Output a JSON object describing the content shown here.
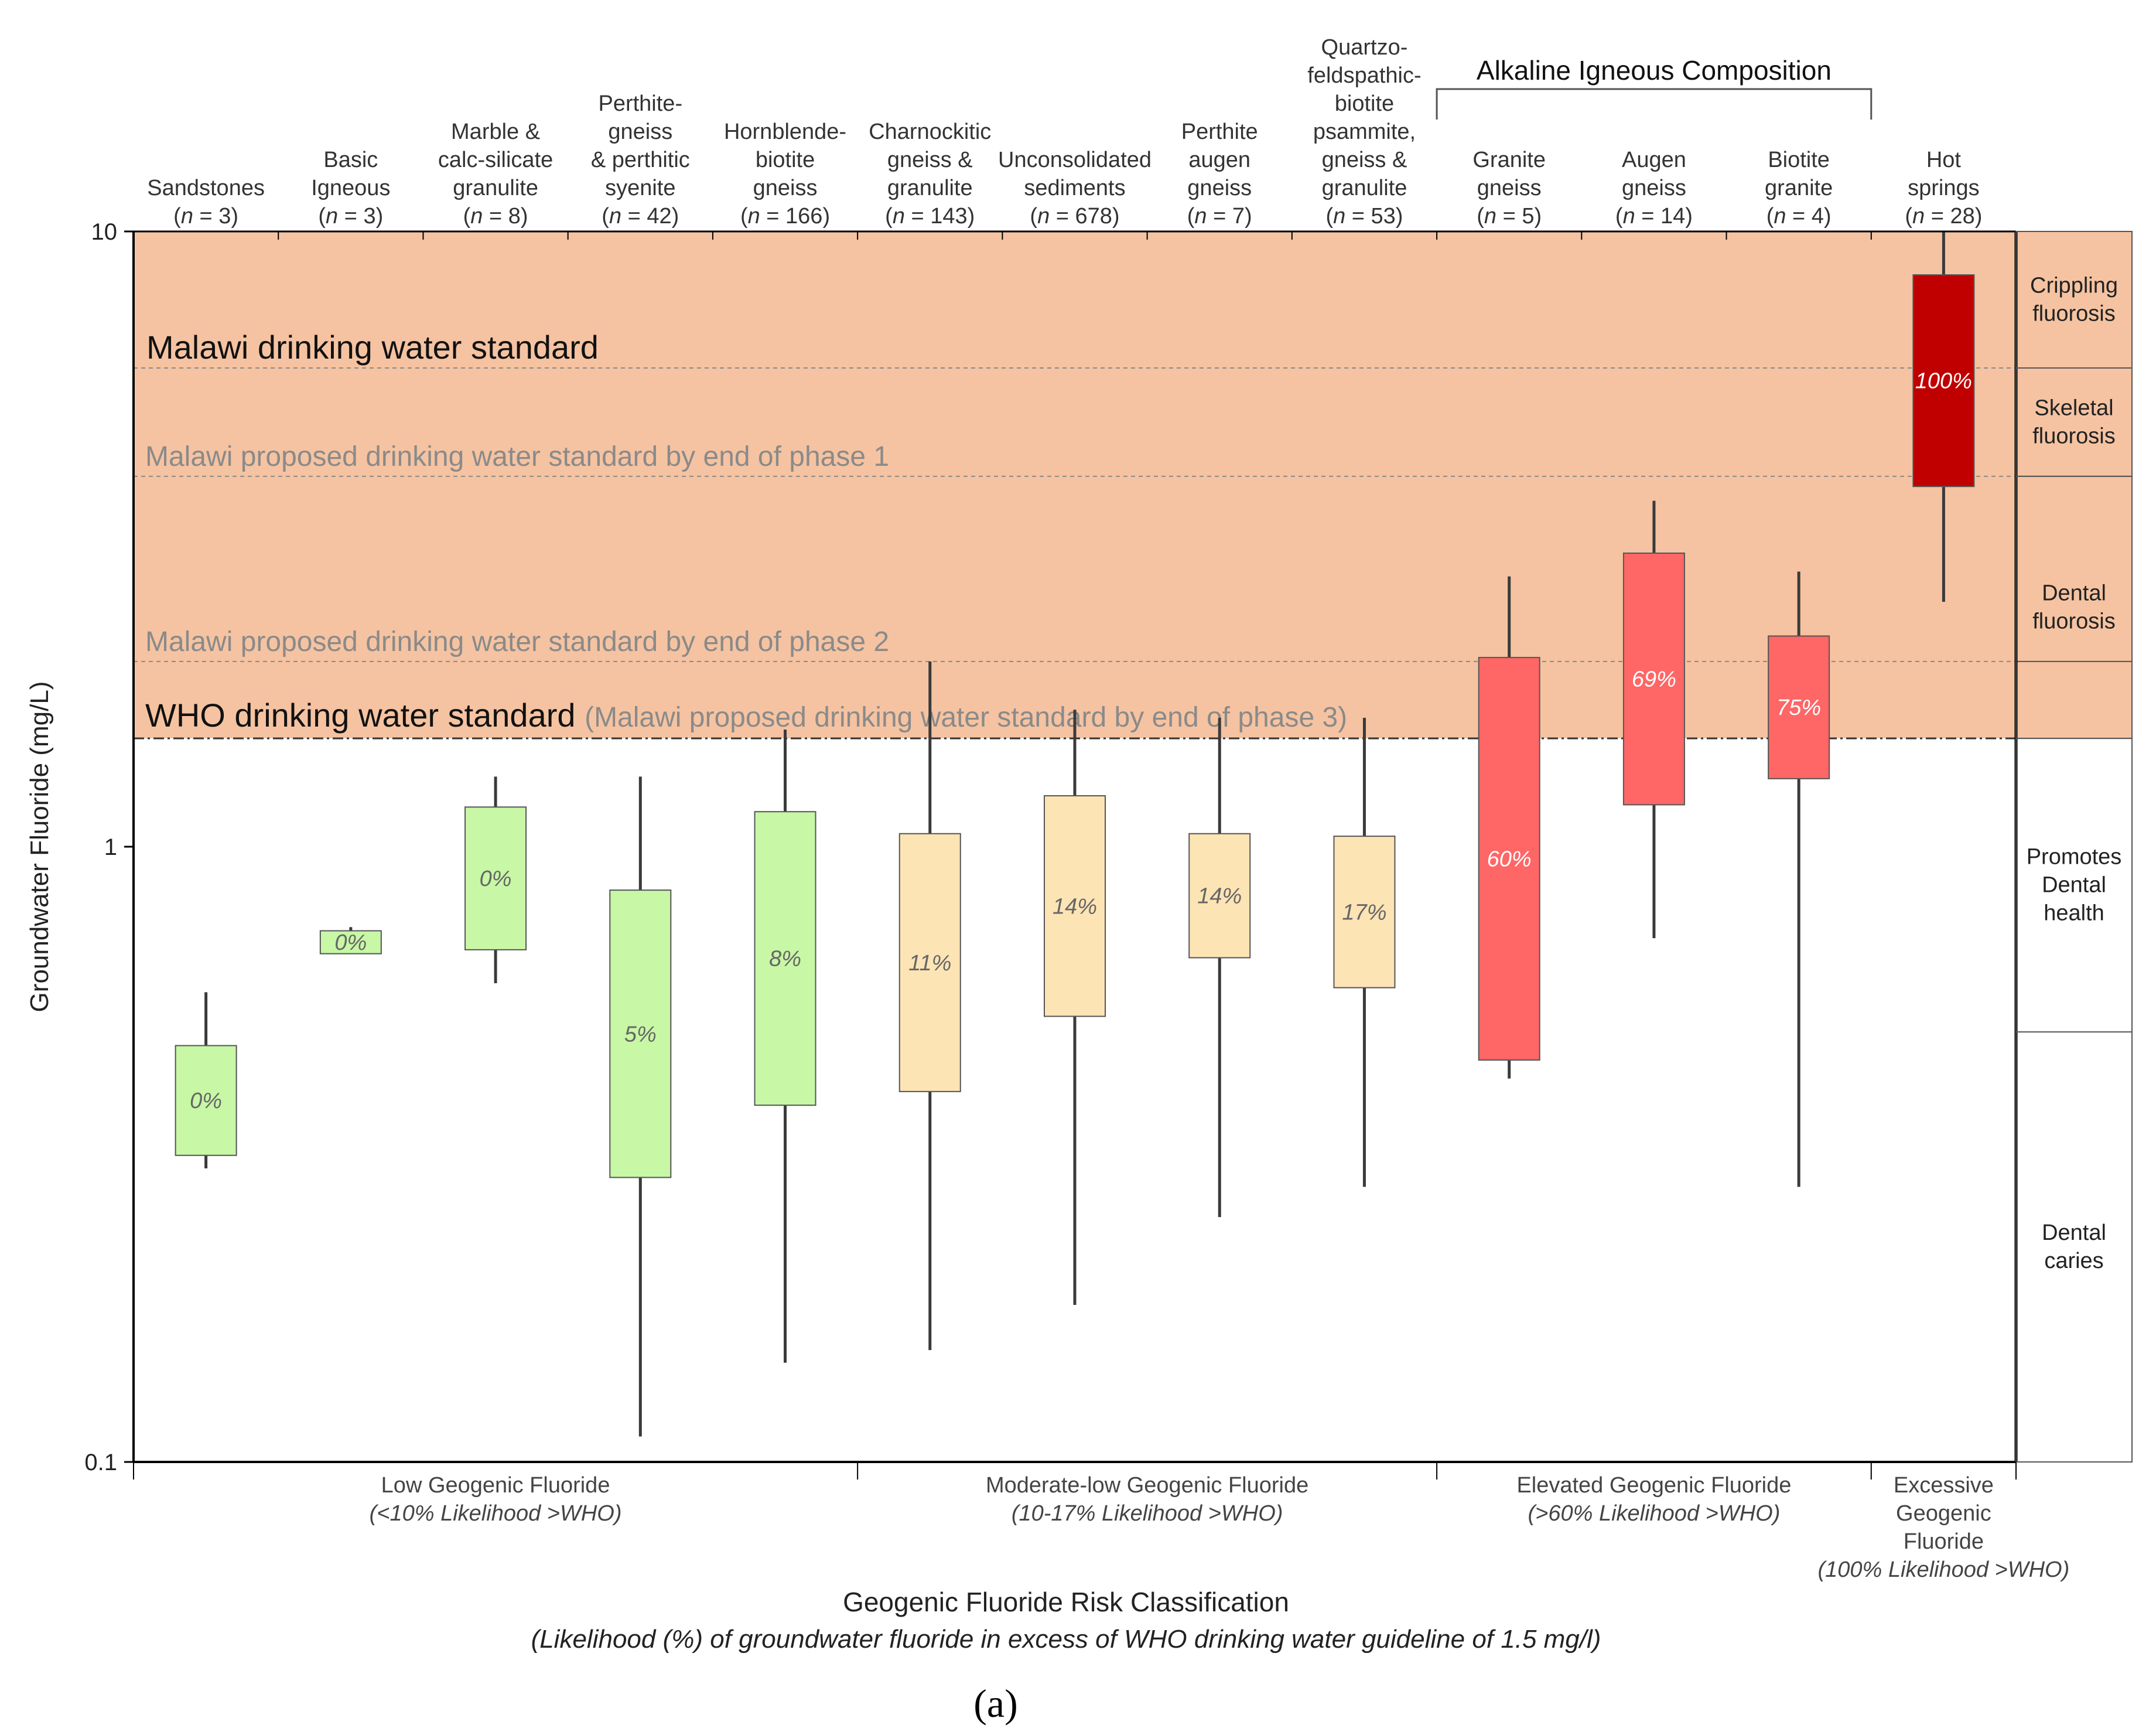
{
  "chart_data": {
    "type": "box",
    "title": "",
    "ylabel": "Groundwater Fluoride (mg/L)",
    "xlabel": "Geogenic Fluoride Risk Classification",
    "xlabel_sub": "(Likelihood (%) of groundwater fluoride in excess of WHO drinking water guideline of 1.5 mg/l)",
    "panel_label": "(a)",
    "y_scale": "log",
    "ylim": [
      0.1,
      10
    ],
    "y_ticks": [
      {
        "value": 0.1,
        "label": "0.1"
      },
      {
        "value": 1,
        "label": "1"
      },
      {
        "value": 10,
        "label": "10"
      }
    ],
    "categories": [
      {
        "name": "Sandstones",
        "n": "3",
        "min": 0.3,
        "q1": 0.315,
        "q3": 0.475,
        "max": 0.58,
        "pct": "0%",
        "color": "#c8f7a6"
      },
      {
        "name": "Basic\nIgneous",
        "n": "3",
        "min": 0.67,
        "q1": 0.67,
        "q3": 0.73,
        "max": 0.74,
        "pct": "0%",
        "color": "#c8f7a6"
      },
      {
        "name": "Marble &\ncalc-silicate\ngranulite",
        "n": "8",
        "min": 0.6,
        "q1": 0.68,
        "q3": 1.16,
        "max": 1.3,
        "pct": "0%",
        "color": "#c8f7a6"
      },
      {
        "name": "Perthite-\ngneiss\n& perthitic\nsyenite",
        "n": "42",
        "min": 0.11,
        "q1": 0.29,
        "q3": 0.85,
        "max": 1.3,
        "pct": "5%",
        "color": "#c8f7a6"
      },
      {
        "name": "Hornblende-\nbiotite\ngneiss",
        "n": "166",
        "min": 0.145,
        "q1": 0.38,
        "q3": 1.14,
        "max": 1.55,
        "pct": "8%",
        "color": "#c8f7a6"
      },
      {
        "name": "Charnockitic\ngneiss &\ngranulite",
        "n": "143",
        "min": 0.152,
        "q1": 0.4,
        "q3": 1.05,
        "max": 2.0,
        "pct": "11%",
        "color": "#fde4b5"
      },
      {
        "name": "Unconsolidated\nsediments",
        "n": "678",
        "min": 0.18,
        "q1": 0.53,
        "q3": 1.21,
        "max": 1.67,
        "pct": "14%",
        "color": "#fde4b5"
      },
      {
        "name": "Perthite\naugen\ngneiss",
        "n": "7",
        "min": 0.25,
        "q1": 0.66,
        "q3": 1.05,
        "max": 1.62,
        "pct": "14%",
        "color": "#fde4b5"
      },
      {
        "name": "Quartzo-\nfeldspathic-\nbiotite\npsammite,\ngneiss &\ngranulite",
        "n": "53",
        "min": 0.28,
        "q1": 0.59,
        "q3": 1.04,
        "max": 1.62,
        "pct": "17%",
        "color": "#fde4b5"
      },
      {
        "name": "Granite\ngneiss",
        "n": "5",
        "min": 0.42,
        "q1": 0.45,
        "q3": 2.03,
        "max": 2.75,
        "pct": "60%",
        "color": "#ff6666"
      },
      {
        "name": "Augen\ngneiss",
        "n": "14",
        "min": 0.71,
        "q1": 1.17,
        "q3": 3.0,
        "max": 3.65,
        "pct": "69%",
        "color": "#ff6666"
      },
      {
        "name": "Biotite\ngranite",
        "n": "4",
        "min": 0.28,
        "q1": 1.29,
        "q3": 2.2,
        "max": 2.8,
        "pct": "75%",
        "color": "#ff6666"
      },
      {
        "name": "Hot\nsprings",
        "n": "28",
        "min": 2.5,
        "q1": 3.85,
        "q3": 8.5,
        "max": 10.0,
        "pct": "100%",
        "color": "#c00000"
      }
    ],
    "bracket": {
      "title": "Alkaline Igneous Composition",
      "from_index": 9,
      "to_index": 11
    },
    "shaded_region": {
      "from": 1.5,
      "to": 10,
      "color": "#f5c3a1"
    },
    "reference_lines": [
      {
        "value": 6.0,
        "label": "Malawi drinking water standard",
        "style": "strong"
      },
      {
        "value": 4.0,
        "label": "Malawi proposed drinking water standard by end of phase 1",
        "style": "weak"
      },
      {
        "value": 2.0,
        "label": "Malawi proposed drinking water standard by end of phase 2",
        "style": "weak"
      },
      {
        "value": 1.5,
        "label": "WHO drinking water standard",
        "label_extra": "(Malawi proposed drinking water standard by end of phase 3)",
        "style": "who"
      }
    ],
    "health_zones": [
      {
        "from": 6.0,
        "to": 10,
        "label": "Crippling\nfluorosis"
      },
      {
        "from": 4.0,
        "to": 6.0,
        "label": "Skeletal\nfluorosis"
      },
      {
        "from": 1.5,
        "to": 4.0,
        "label": "Dental\nfluorosis"
      },
      {
        "from": 0.5,
        "to": 1.5,
        "label": "Promotes\nDental\nhealth"
      },
      {
        "from": 0.1,
        "to": 0.5,
        "label": "Dental\ncaries"
      }
    ],
    "risk_groups": [
      {
        "name": "Low Geogenic Fluoride",
        "sub": "(<10% Likelihood >WHO)",
        "from_index": 0,
        "to_index": 4
      },
      {
        "name": "Moderate-low Geogenic Fluoride",
        "sub": "(10-17% Likelihood >WHO)",
        "from_index": 5,
        "to_index": 8
      },
      {
        "name": "Elevated Geogenic Fluoride",
        "sub": "(>60% Likelihood >WHO)",
        "from_index": 9,
        "to_index": 11
      },
      {
        "name": "Excessive\nGeogenic\nFluoride",
        "sub": "(100% Likelihood >WHO)",
        "from_index": 12,
        "to_index": 12
      }
    ]
  }
}
